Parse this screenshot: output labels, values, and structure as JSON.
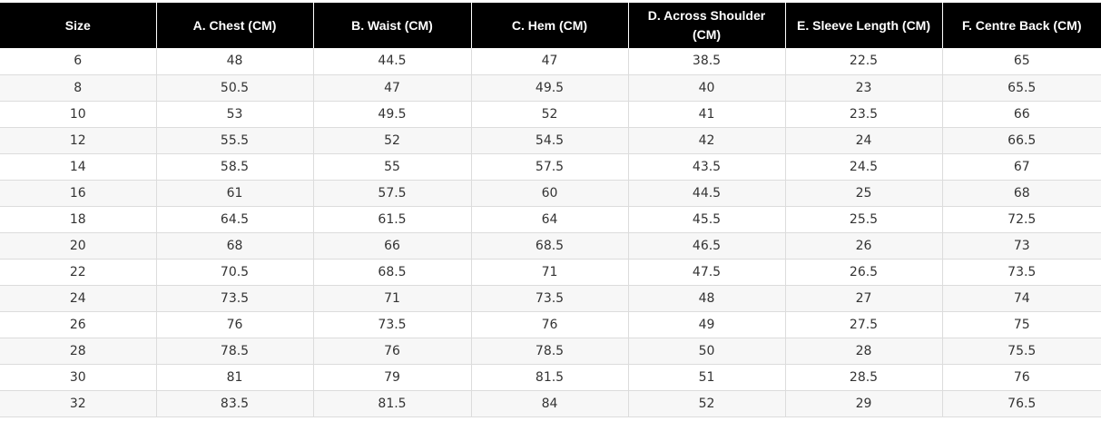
{
  "table": {
    "headers": [
      "Size",
      "A. Chest (CM)",
      "B. Waist (CM)",
      "C. Hem (CM)",
      "D. Across Shoulder (CM)",
      "E. Sleeve Length (CM)",
      "F. Centre Back (CM)"
    ],
    "rows": [
      [
        "6",
        "48",
        "44.5",
        "47",
        "38.5",
        "22.5",
        "65"
      ],
      [
        "8",
        "50.5",
        "47",
        "49.5",
        "40",
        "23",
        "65.5"
      ],
      [
        "10",
        "53",
        "49.5",
        "52",
        "41",
        "23.5",
        "66"
      ],
      [
        "12",
        "55.5",
        "52",
        "54.5",
        "42",
        "24",
        "66.5"
      ],
      [
        "14",
        "58.5",
        "55",
        "57.5",
        "43.5",
        "24.5",
        "67"
      ],
      [
        "16",
        "61",
        "57.5",
        "60",
        "44.5",
        "25",
        "68"
      ],
      [
        "18",
        "64.5",
        "61.5",
        "64",
        "45.5",
        "25.5",
        "72.5"
      ],
      [
        "20",
        "68",
        "66",
        "68.5",
        "46.5",
        "26",
        "73"
      ],
      [
        "22",
        "70.5",
        "68.5",
        "71",
        "47.5",
        "26.5",
        "73.5"
      ],
      [
        "24",
        "73.5",
        "71",
        "73.5",
        "48",
        "27",
        "74"
      ],
      [
        "26",
        "76",
        "73.5",
        "76",
        "49",
        "27.5",
        "75"
      ],
      [
        "28",
        "78.5",
        "76",
        "78.5",
        "50",
        "28",
        "75.5"
      ],
      [
        "30",
        "81",
        "79",
        "81.5",
        "51",
        "28.5",
        "76"
      ],
      [
        "32",
        "83.5",
        "81.5",
        "84",
        "52",
        "29",
        "76.5"
      ]
    ]
  },
  "colors": {
    "header_bg": "#000000",
    "header_text": "#ffffff",
    "row_alt_bg": "#f7f7f7",
    "cell_text": "#333333",
    "grid_line": "#dcdcdc"
  }
}
